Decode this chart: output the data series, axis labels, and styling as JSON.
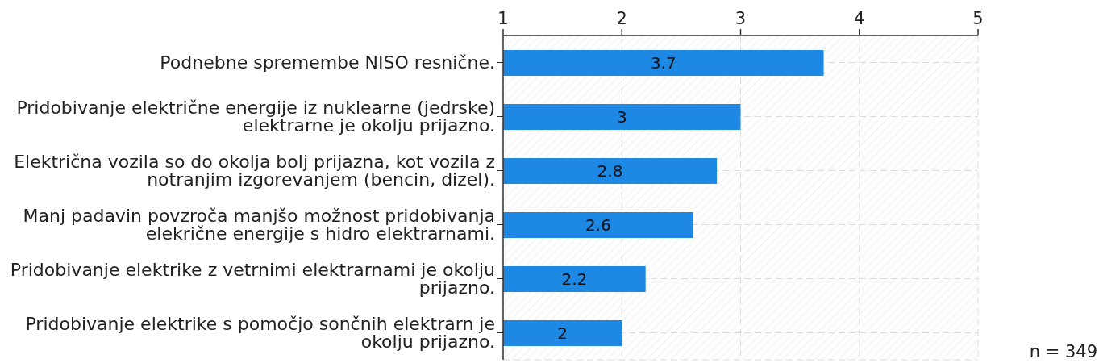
{
  "chart_data": {
    "type": "bar",
    "orientation": "horizontal",
    "categories": [
      "Podnebne spremembe NISO resnične.",
      "Pridobivanje električne energije iz nuklearne (jedrske) elektrarne je okolju prijazno.",
      "Električna vozila so do okolja bolj prijazna, kot vozila z notranjim izgorevanjem (bencin, dizel).",
      "Manj padavin povzroča manjšo možnost pridobivanja elekrične energije s hidro elektrarnami.",
      "Pridobivanje elektrike z vetrnimi elektrarnami je okolju prijazno.",
      "Pridobivanje elektrike s pomočjo sončnih elektrarn je okolju prijazno."
    ],
    "values": [
      3.7,
      3,
      2.8,
      2.6,
      2.2,
      2
    ],
    "color": "#1e88e5",
    "xlim": [
      1,
      5
    ],
    "xticks": [
      1,
      2,
      3,
      4,
      5
    ],
    "grid": true,
    "data_labels": true,
    "annotations": [
      "n = 349"
    ]
  }
}
